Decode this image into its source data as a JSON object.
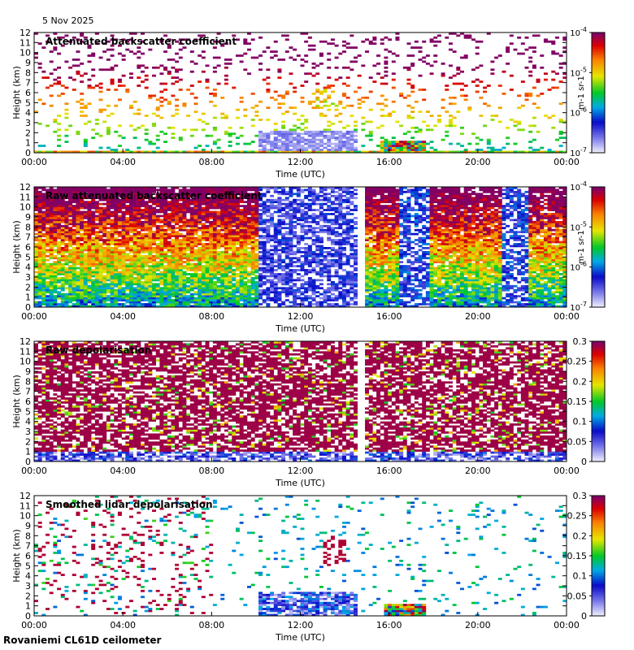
{
  "date": "5 Nov 2025",
  "site": "Rovaniemi CL61D ceilometer",
  "chart_data": [
    {
      "type": "heatmap",
      "title": "Attenuated backscatter coefficient",
      "xlabel": "Time (UTC)",
      "ylabel": "Height (km)",
      "xlim_hours": [
        0,
        24
      ],
      "ylim": [
        0,
        12
      ],
      "x_ticks": [
        "00:00",
        "04:00",
        "08:00",
        "12:00",
        "16:00",
        "20:00",
        "00:00"
      ],
      "y_ticks": [
        "0",
        "1",
        "2",
        "3",
        "4",
        "5",
        "6",
        "7",
        "8",
        "9",
        "10",
        "11",
        "12"
      ],
      "colorbar": {
        "scale": "log",
        "range": [
          1e-07,
          0.0001
        ],
        "ticks": [
          "10-7",
          "10-6",
          "10-5",
          "10-4"
        ],
        "unit": "m-1 sr-1"
      }
    },
    {
      "type": "heatmap",
      "title": "Raw attenuated backscatter coefficient",
      "xlabel": "Time (UTC)",
      "ylabel": "Height (km)",
      "xlim_hours": [
        0,
        24
      ],
      "ylim": [
        0,
        12
      ],
      "x_ticks": [
        "00:00",
        "04:00",
        "08:00",
        "12:00",
        "16:00",
        "20:00",
        "00:00"
      ],
      "y_ticks": [
        "0",
        "1",
        "2",
        "3",
        "4",
        "5",
        "6",
        "7",
        "8",
        "9",
        "10",
        "11",
        "12"
      ],
      "colorbar": {
        "scale": "log",
        "range": [
          1e-07,
          0.0001
        ],
        "ticks": [
          "10-7",
          "10-6",
          "10-5",
          "10-4"
        ],
        "unit": "m-1 sr-1"
      }
    },
    {
      "type": "heatmap",
      "title": "Raw depolarisation",
      "xlabel": "Time (UTC)",
      "ylabel": "Height (km)",
      "xlim_hours": [
        0,
        24
      ],
      "ylim": [
        0,
        12
      ],
      "x_ticks": [
        "00:00",
        "04:00",
        "08:00",
        "12:00",
        "16:00",
        "20:00",
        "00:00"
      ],
      "y_ticks": [
        "0",
        "1",
        "2",
        "3",
        "4",
        "5",
        "6",
        "7",
        "8",
        "9",
        "10",
        "11",
        "12"
      ],
      "colorbar": {
        "scale": "linear",
        "range": [
          0,
          0.3
        ],
        "ticks": [
          "0",
          "0.05",
          "0.1",
          "0.15",
          "0.2",
          "0.25",
          "0.3"
        ],
        "unit": ""
      }
    },
    {
      "type": "heatmap",
      "title": "Smoothed lidar depolarisation",
      "xlabel": "Time (UTC)",
      "ylabel": "Height (km)",
      "xlim_hours": [
        0,
        24
      ],
      "ylim": [
        0,
        12
      ],
      "x_ticks": [
        "00:00",
        "04:00",
        "08:00",
        "12:00",
        "16:00",
        "20:00",
        "00:00"
      ],
      "y_ticks": [
        "0",
        "1",
        "2",
        "3",
        "4",
        "5",
        "6",
        "7",
        "8",
        "9",
        "10",
        "11",
        "12"
      ],
      "colorbar": {
        "scale": "linear",
        "range": [
          0,
          0.3
        ],
        "ticks": [
          "0",
          "0.05",
          "0.1",
          "0.15",
          "0.2",
          "0.25",
          "0.3"
        ],
        "unit": ""
      }
    }
  ]
}
